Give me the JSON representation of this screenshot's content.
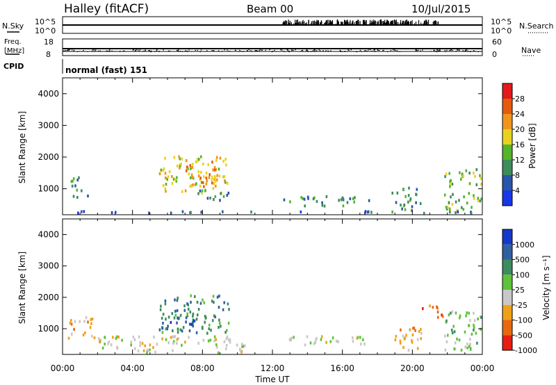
{
  "header": {
    "title": "Halley (fitACF)",
    "beam": "Beam 00",
    "date": "10/Jul/2015"
  },
  "noise_panel": {
    "left_label": "N.Sky",
    "right_label": "N.Search",
    "left_ticks": [
      "10^5",
      "10^0"
    ],
    "right_ticks": [
      "10^5",
      "10^0"
    ]
  },
  "freq_panel": {
    "left_label_1": "Freq.",
    "left_label_2": "[MHz]",
    "left_ticks": [
      "18",
      "8"
    ],
    "right_label": "Nave",
    "right_ticks": [
      "60",
      "0"
    ]
  },
  "cpid_panel": {
    "label": "CPID",
    "text": "normal (fast) 151"
  },
  "power_panel": {
    "ylabel": "Slant Range [km]",
    "yticks": [
      "4000",
      "3000",
      "2000",
      "1000"
    ],
    "colorbar_label": "Power [dB]",
    "colorbar_ticks": [
      "28",
      "24",
      "20",
      "16",
      "12",
      "8",
      "4"
    ],
    "colors": [
      "#e4191b",
      "#e55a0e",
      "#f0951c",
      "#e8d21e",
      "#54b42a",
      "#3e8b5c",
      "#2956a8",
      "#1736e8"
    ]
  },
  "velocity_panel": {
    "ylabel": "Slant Range [km]",
    "yticks": [
      "4000",
      "3000",
      "2000",
      "1000"
    ],
    "colorbar_label": "Velocity [m s⁻¹]",
    "colorbar_ticks": [
      "1000",
      "500",
      "100",
      "25",
      "-25",
      "-100",
      "-500",
      "-1000"
    ],
    "colors": [
      "#1439c8",
      "#2f61a0",
      "#3d8b5e",
      "#5fc23a",
      "#c8c8c8",
      "#f0a018",
      "#e86810",
      "#e81c10"
    ]
  },
  "x_axis": {
    "ticks": [
      "00:00",
      "04:00",
      "08:00",
      "12:00",
      "16:00",
      "20:00",
      "00:00"
    ],
    "label": "Time UT"
  },
  "chart_data": {
    "type": "heatmap",
    "x_range_hours": [
      0,
      24
    ],
    "y_range_km": [
      180,
      4500
    ],
    "power_regions": [
      {
        "t": [
          5.5,
          9.5
        ],
        "r": [
          900,
          2100
        ],
        "value": 16
      },
      {
        "t": [
          7.0,
          8.8
        ],
        "r": [
          1100,
          1900
        ],
        "value": 22
      },
      {
        "t": [
          7.5,
          9.5
        ],
        "r": [
          650,
          1000
        ],
        "value": 10
      },
      {
        "t": [
          0.4,
          1.4
        ],
        "r": [
          700,
          1400
        ],
        "value": 8
      },
      {
        "t": [
          12.5,
          17.5
        ],
        "r": [
          500,
          800
        ],
        "value": 8
      },
      {
        "t": [
          18.8,
          20.5
        ],
        "r": [
          300,
          1100
        ],
        "value": 10
      },
      {
        "t": [
          21.8,
          24.0
        ],
        "r": [
          200,
          1700
        ],
        "value": 14
      },
      {
        "t": [
          0.0,
          24.0
        ],
        "r": [
          180,
          330
        ],
        "value": 6
      }
    ],
    "velocity_regions": [
      {
        "t": [
          5.5,
          9.5
        ],
        "r": [
          900,
          2100
        ],
        "value": 100
      },
      {
        "t": [
          5.5,
          7.5
        ],
        "r": [
          900,
          1400
        ],
        "value": 500
      },
      {
        "t": [
          0.3,
          1.8
        ],
        "r": [
          700,
          1400
        ],
        "value": -100
      },
      {
        "t": [
          2.0,
          10.5
        ],
        "r": [
          200,
          800
        ],
        "value": -25
      },
      {
        "t": [
          12.5,
          17.5
        ],
        "r": [
          500,
          800
        ],
        "value": -25
      },
      {
        "t": [
          18.8,
          20.5
        ],
        "r": [
          300,
          1100
        ],
        "value": -100
      },
      {
        "t": [
          20.5,
          21.8
        ],
        "r": [
          1400,
          1800
        ],
        "value": -500
      },
      {
        "t": [
          21.8,
          24.0
        ],
        "r": [
          200,
          1600
        ],
        "value": 25
      }
    ]
  }
}
